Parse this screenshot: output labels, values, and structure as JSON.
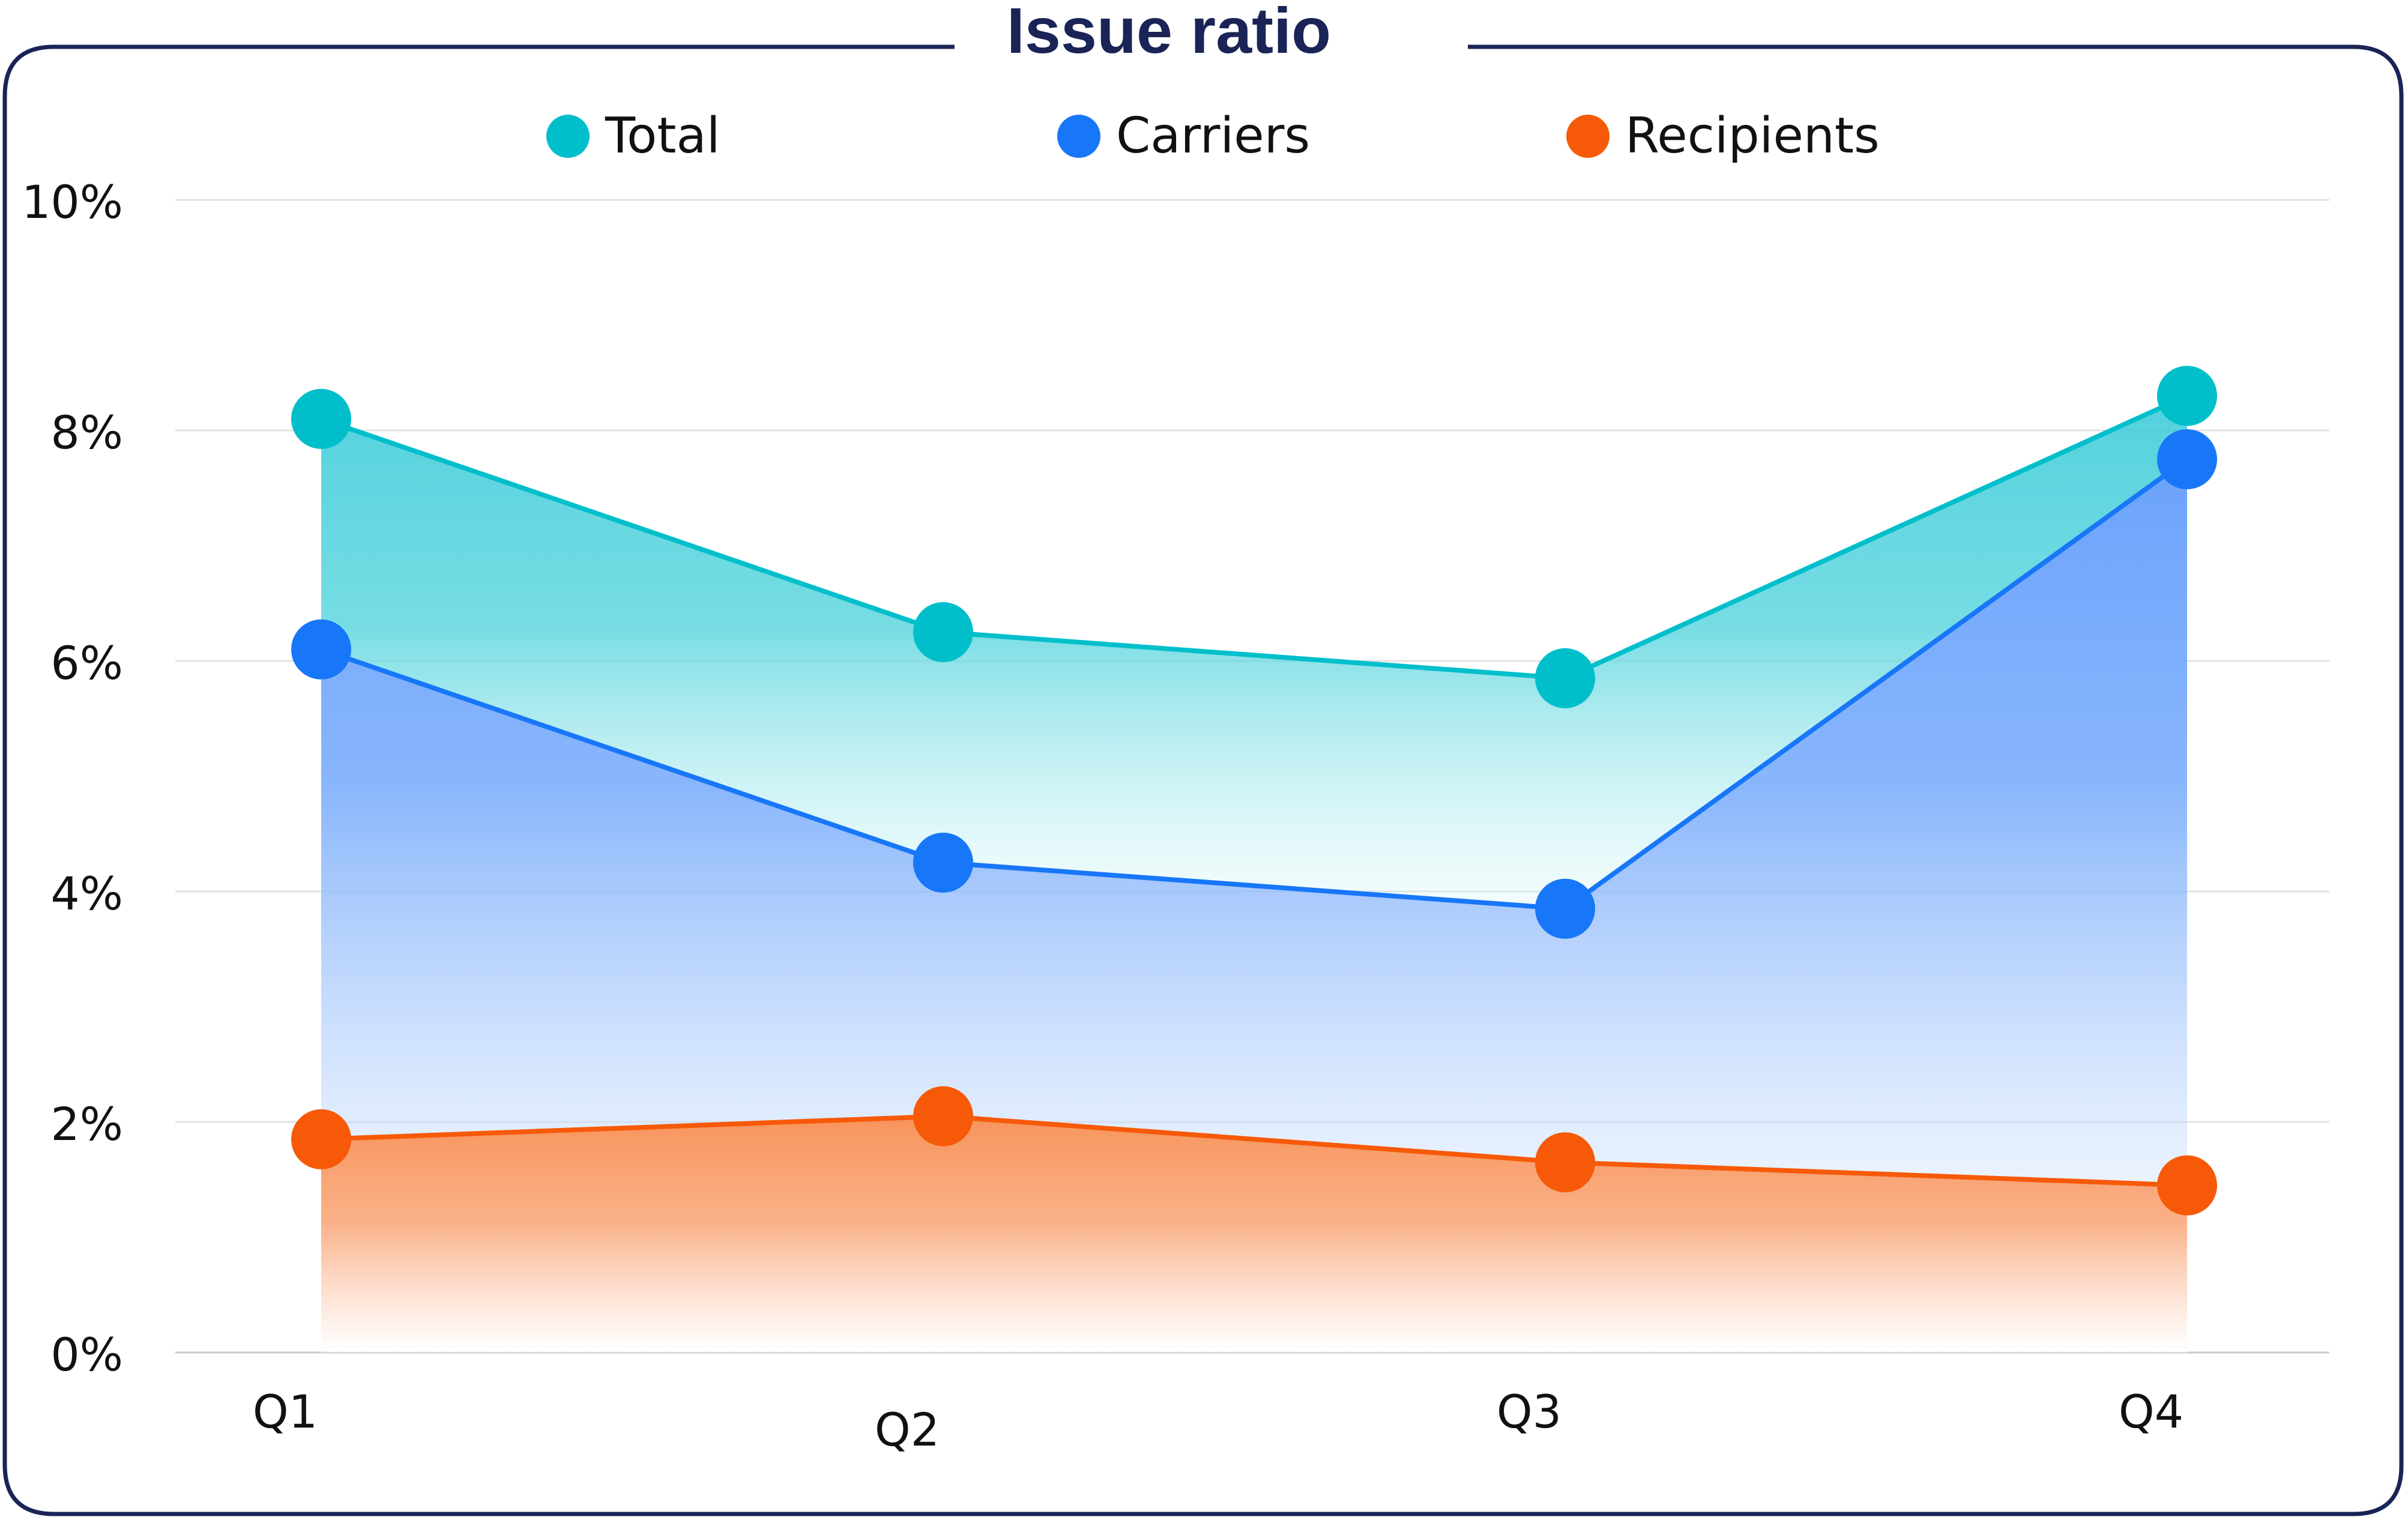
{
  "chart_data": {
    "type": "area",
    "title": "Issue ratio",
    "xlabel": "",
    "ylabel": "",
    "categories": [
      "Q1",
      "Q2",
      "Q3",
      "Q4"
    ],
    "y_ticks": [
      "0%",
      "2%",
      "4%",
      "6%",
      "8%",
      "10%"
    ],
    "y_tick_values": [
      0,
      2,
      4,
      6,
      8,
      10
    ],
    "ylim": [
      0,
      10
    ],
    "grid": true,
    "legend": "top-center",
    "series": [
      {
        "name": "Total",
        "color": "#00BFCB",
        "values": [
          8.1,
          6.25,
          5.85,
          8.3
        ]
      },
      {
        "name": "Carriers",
        "color": "#1877F8",
        "values": [
          6.1,
          4.25,
          3.85,
          7.75
        ]
      },
      {
        "name": "Recipients",
        "color": "#F65A08",
        "values": [
          1.85,
          2.05,
          1.65,
          1.45
        ]
      }
    ]
  }
}
